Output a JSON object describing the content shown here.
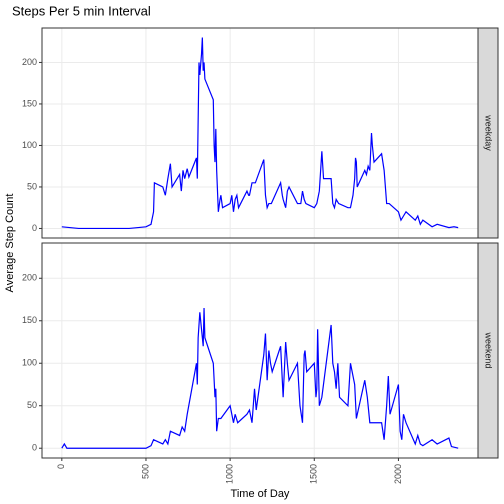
{
  "chart_data": {
    "type": "line",
    "title": "Steps Per 5 min Interval",
    "x_label": "Time of Day",
    "y_label": "Average Step Count",
    "xlim": [
      -117.75,
      2472.75
    ],
    "xticks": [
      0,
      500,
      1000,
      1500,
      2000
    ],
    "ylim": [
      -11.5,
      241.5
    ],
    "yticks": [
      0,
      50,
      100,
      150,
      200
    ],
    "grid": true,
    "series": [
      {
        "name": "weekday",
        "color": "#0000ff",
        "x": [
          0,
          100,
          200,
          300,
          400,
          500,
          530,
          545,
          550,
          600,
          615,
          630,
          645,
          655,
          700,
          710,
          720,
          730,
          745,
          755,
          800,
          805,
          815,
          820,
          830,
          835,
          840,
          845,
          850,
          900,
          905,
          910,
          915,
          920,
          930,
          940,
          945,
          955,
          1000,
          1010,
          1020,
          1030,
          1040,
          1050,
          1100,
          1110,
          1115,
          1120,
          1130,
          1150,
          1200,
          1210,
          1220,
          1230,
          1245,
          1300,
          1310,
          1315,
          1330,
          1340,
          1350,
          1400,
          1420,
          1430,
          1440,
          1450,
          1500,
          1515,
          1530,
          1545,
          1555,
          1600,
          1610,
          1620,
          1630,
          1645,
          1700,
          1715,
          1730,
          1740,
          1745,
          1750,
          1755,
          1800,
          1810,
          1820,
          1830,
          1840,
          1845,
          1855,
          1900,
          1915,
          1930,
          1945,
          2000,
          2015,
          2030,
          2045,
          2100,
          2115,
          2130,
          2145,
          2200,
          2230,
          2300,
          2330,
          2355
        ],
        "values": [
          2,
          0,
          0,
          0,
          0,
          2,
          5,
          20,
          55,
          50,
          40,
          60,
          78,
          50,
          65,
          45,
          70,
          60,
          72,
          62,
          85,
          60,
          200,
          185,
          210,
          230,
          190,
          200,
          180,
          155,
          100,
          80,
          120,
          70,
          20,
          35,
          40,
          25,
          30,
          40,
          20,
          35,
          40,
          25,
          45,
          40,
          40,
          45,
          55,
          55,
          83,
          40,
          25,
          30,
          30,
          55,
          40,
          35,
          25,
          45,
          50,
          30,
          30,
          45,
          35,
          30,
          25,
          30,
          45,
          93,
          60,
          60,
          30,
          25,
          35,
          30,
          25,
          25,
          40,
          60,
          85,
          80,
          50,
          70,
          65,
          75,
          70,
          115,
          100,
          80,
          90,
          70,
          30,
          30,
          20,
          10,
          15,
          20,
          10,
          15,
          5,
          10,
          2,
          5,
          1,
          2,
          1
        ]
      },
      {
        "name": "weekend",
        "color": "#0000ff",
        "x": [
          0,
          15,
          30,
          100,
          200,
          300,
          400,
          500,
          530,
          545,
          600,
          615,
          630,
          645,
          700,
          715,
          730,
          745,
          800,
          805,
          810,
          820,
          830,
          840,
          845,
          850,
          900,
          910,
          915,
          920,
          930,
          945,
          1000,
          1010,
          1020,
          1030,
          1045,
          1100,
          1115,
          1130,
          1145,
          1155,
          1200,
          1210,
          1220,
          1230,
          1240,
          1250,
          1300,
          1315,
          1330,
          1340,
          1350,
          1400,
          1415,
          1430,
          1440,
          1445,
          1455,
          1500,
          1510,
          1515,
          1520,
          1530,
          1545,
          1600,
          1610,
          1620,
          1630,
          1640,
          1650,
          1700,
          1715,
          1730,
          1740,
          1750,
          1800,
          1815,
          1830,
          1845,
          1900,
          1915,
          1930,
          1940,
          1950,
          2000,
          2010,
          2020,
          2030,
          2045,
          2100,
          2115,
          2130,
          2145,
          2200,
          2230,
          2300,
          2315,
          2355
        ],
        "values": [
          0,
          5,
          0,
          0,
          0,
          0,
          0,
          0,
          3,
          10,
          5,
          10,
          5,
          20,
          15,
          25,
          20,
          40,
          100,
          75,
          130,
          160,
          140,
          120,
          165,
          130,
          100,
          60,
          70,
          20,
          35,
          35,
          50,
          40,
          30,
          40,
          30,
          40,
          45,
          30,
          70,
          45,
          110,
          135,
          80,
          115,
          100,
          90,
          120,
          60,
          125,
          100,
          80,
          100,
          50,
          30,
          110,
          115,
          90,
          100,
          60,
          70,
          140,
          50,
          60,
          145,
          100,
          90,
          70,
          100,
          60,
          50,
          100,
          85,
          75,
          35,
          80,
          60,
          30,
          30,
          30,
          10,
          50,
          85,
          40,
          75,
          20,
          10,
          40,
          30,
          5,
          15,
          5,
          3,
          10,
          5,
          12,
          2,
          0
        ]
      }
    ]
  }
}
